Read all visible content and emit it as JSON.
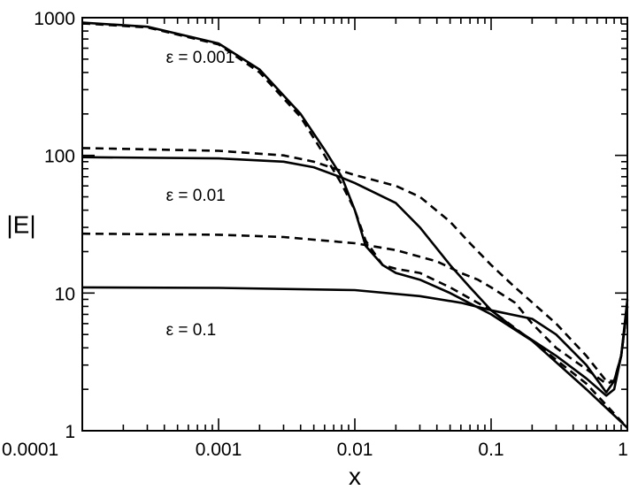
{
  "chart_data": {
    "type": "line",
    "xlabel": "x",
    "ylabel": "|E|",
    "xscale": "log",
    "yscale": "log",
    "xlim": [
      0.0001,
      1
    ],
    "ylim": [
      1,
      1000
    ],
    "x_tick_labels": [
      "0.0001",
      "0.001",
      "0.01",
      "0.1",
      "1"
    ],
    "y_tick_labels": [
      "1",
      "10",
      "100",
      "1000"
    ],
    "grid": false,
    "annotations": [
      {
        "text": "ε = 0.001",
        "x": 0.0005,
        "y": 520
      },
      {
        "text": "ε = 0.01",
        "x": 0.0005,
        "y": 52
      },
      {
        "text": "ε = 0.1",
        "x": 0.0005,
        "y": 5.5
      }
    ],
    "series": [
      {
        "style": "solid",
        "points": [
          [
            0.0001,
            920
          ],
          [
            0.0003,
            860
          ],
          [
            0.001,
            650
          ],
          [
            0.002,
            420
          ],
          [
            0.004,
            200
          ],
          [
            0.006,
            110
          ],
          [
            0.008,
            70
          ],
          [
            0.01,
            40
          ],
          [
            0.012,
            22
          ],
          [
            0.016,
            16
          ],
          [
            0.02,
            14
          ],
          [
            0.03,
            12.5
          ],
          [
            0.05,
            10
          ],
          [
            0.1,
            7
          ],
          [
            0.2,
            4.5
          ],
          [
            0.5,
            2
          ],
          [
            1,
            1.05
          ]
        ]
      },
      {
        "style": "dashed",
        "points": [
          [
            0.0001,
            910
          ],
          [
            0.0003,
            850
          ],
          [
            0.001,
            640
          ],
          [
            0.002,
            400
          ],
          [
            0.004,
            190
          ],
          [
            0.006,
            100
          ],
          [
            0.008,
            62
          ],
          [
            0.01,
            40
          ],
          [
            0.012,
            24
          ],
          [
            0.016,
            16
          ],
          [
            0.02,
            15
          ],
          [
            0.03,
            14
          ],
          [
            0.05,
            11
          ],
          [
            0.1,
            7.5
          ],
          [
            0.2,
            4.5
          ],
          [
            0.5,
            2.2
          ],
          [
            1,
            1.05
          ]
        ]
      },
      {
        "style": "solid",
        "points": [
          [
            0.0001,
            97
          ],
          [
            0.001,
            95
          ],
          [
            0.003,
            90
          ],
          [
            0.005,
            82
          ],
          [
            0.008,
            69
          ],
          [
            0.01,
            63
          ],
          [
            0.02,
            45
          ],
          [
            0.03,
            30
          ],
          [
            0.05,
            16
          ],
          [
            0.07,
            11
          ],
          [
            0.1,
            7.5
          ],
          [
            0.15,
            5.5
          ],
          [
            0.3,
            3.5
          ],
          [
            0.5,
            2.4
          ],
          [
            0.7,
            1.8
          ],
          [
            0.8,
            2
          ],
          [
            0.9,
            3.5
          ],
          [
            1,
            8
          ]
        ]
      },
      {
        "style": "dashed",
        "points": [
          [
            0.0001,
            113
          ],
          [
            0.001,
            108
          ],
          [
            0.003,
            100
          ],
          [
            0.005,
            90
          ],
          [
            0.008,
            77
          ],
          [
            0.01,
            72
          ],
          [
            0.02,
            60
          ],
          [
            0.03,
            50
          ],
          [
            0.05,
            33
          ],
          [
            0.07,
            23
          ],
          [
            0.1,
            16
          ],
          [
            0.15,
            11
          ],
          [
            0.3,
            6
          ],
          [
            0.5,
            3.5
          ],
          [
            0.7,
            2.3
          ],
          [
            0.8,
            2.3
          ],
          [
            0.9,
            3.5
          ],
          [
            1,
            8
          ]
        ]
      },
      {
        "style": "solid",
        "points": [
          [
            0.0001,
            11
          ],
          [
            0.001,
            10.9
          ],
          [
            0.01,
            10.5
          ],
          [
            0.03,
            9.5
          ],
          [
            0.06,
            8.5
          ],
          [
            0.1,
            7.5
          ],
          [
            0.2,
            6.5
          ],
          [
            0.3,
            5
          ],
          [
            0.5,
            3
          ],
          [
            0.7,
            1.9
          ],
          [
            0.8,
            2.3
          ],
          [
            0.9,
            3.5
          ],
          [
            1,
            9
          ]
        ]
      },
      {
        "style": "dashed",
        "points": [
          [
            0.0001,
            27
          ],
          [
            0.001,
            26.5
          ],
          [
            0.003,
            25.5
          ],
          [
            0.01,
            23
          ],
          [
            0.02,
            20.5
          ],
          [
            0.04,
            17
          ],
          [
            0.06,
            14
          ],
          [
            0.08,
            12.5
          ],
          [
            0.1,
            11
          ],
          [
            0.15,
            8.5
          ],
          [
            0.2,
            6
          ],
          [
            0.3,
            4
          ],
          [
            0.5,
            2.8
          ],
          [
            0.7,
            2.2
          ],
          [
            0.8,
            2.3
          ],
          [
            0.9,
            3.5
          ],
          [
            1,
            8
          ]
        ]
      }
    ]
  }
}
